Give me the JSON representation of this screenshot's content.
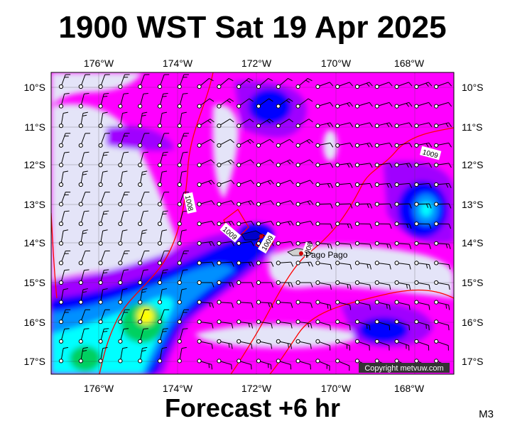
{
  "title": "1900 WST Sat 19 Apr 2025",
  "subtitle": "Forecast +6 hr",
  "corner_label": "M3",
  "copyright": "Copyright metvuw.com",
  "place_label": "Pago Pago",
  "isobar_labels": [
    "1008",
    "1009",
    "1009",
    "1009",
    "1008"
  ],
  "lon_labels": [
    "176°W",
    "174°W",
    "172°W",
    "170°W",
    "168°W"
  ],
  "lat_labels": [
    "10°S",
    "11°S",
    "12°S",
    "13°S",
    "14°S",
    "15°S",
    "16°S",
    "17°S"
  ],
  "colors": {
    "calm": "#e4e4f8",
    "magenta": "#ff00ff",
    "purple": "#a000ff",
    "blue": "#0000ff",
    "lightblue": "#0090ff",
    "cyan": "#00ffff",
    "green": "#00d060",
    "yellow": "#ffff00",
    "isobar": "#ff0000"
  }
}
